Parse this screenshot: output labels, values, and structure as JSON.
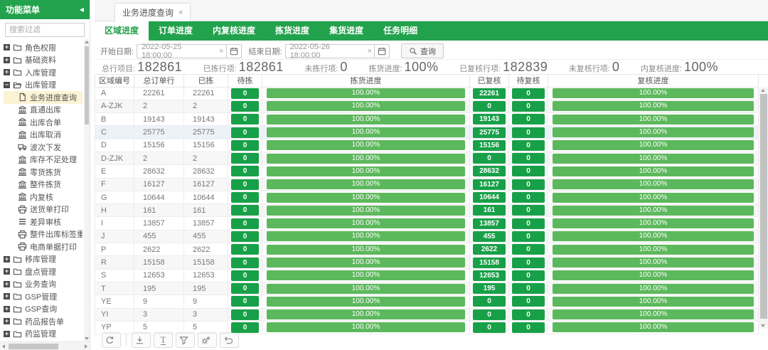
{
  "colors": {
    "accent_green": "#22A24C",
    "badge_green": "#18A048",
    "bar_green": "#5CB85C",
    "selected_yellow": "#FBF3D3",
    "highlight_row": "#EDF2F8"
  },
  "sidebar": {
    "title": "功能菜单",
    "collapse_glyph": "◀",
    "search_placeholder": "搜索过滤",
    "items": [
      {
        "label": "角色权限",
        "icon": "folder-icon",
        "expand": "+"
      },
      {
        "label": "基础资料",
        "icon": "folder-icon",
        "expand": "+"
      },
      {
        "label": "入库管理",
        "icon": "folder-icon",
        "expand": "+"
      },
      {
        "label": "出库管理",
        "icon": "folder-open-icon",
        "expand": "−"
      },
      {
        "label": "业务进度查询",
        "icon": "file-icon",
        "child": true,
        "selected": true
      },
      {
        "label": "直通出库",
        "icon": "bank-icon",
        "child": true
      },
      {
        "label": "出库合单",
        "icon": "bank-icon",
        "child": true
      },
      {
        "label": "出库取消",
        "icon": "bank-icon",
        "child": true
      },
      {
        "label": "波次下发",
        "icon": "truck-icon",
        "child": true
      },
      {
        "label": "库存不足处理",
        "icon": "bank-icon",
        "child": true
      },
      {
        "label": "零货拣货",
        "icon": "bank-icon",
        "child": true
      },
      {
        "label": "整件拣货",
        "icon": "bank-icon",
        "child": true
      },
      {
        "label": "内复核",
        "icon": "bank-icon",
        "child": true
      },
      {
        "label": "送货单打印",
        "icon": "printer-icon",
        "child": true
      },
      {
        "label": "差异审核",
        "icon": "list-icon",
        "child": true
      },
      {
        "label": "整件出库标签重打",
        "icon": "printer-icon",
        "child": true
      },
      {
        "label": "电商单据打印",
        "icon": "printer-icon",
        "child": true
      },
      {
        "label": "移库管理",
        "icon": "folder-icon",
        "expand": "+"
      },
      {
        "label": "盘点管理",
        "icon": "folder-icon",
        "expand": "+"
      },
      {
        "label": "业务查询",
        "icon": "folder-icon",
        "expand": "+"
      },
      {
        "label": "GSP管理",
        "icon": "folder-icon",
        "expand": "+"
      },
      {
        "label": "GSP查询",
        "icon": "folder-icon",
        "expand": "+"
      },
      {
        "label": "药品报告单",
        "icon": "folder-icon",
        "expand": "+"
      },
      {
        "label": "药监管理",
        "icon": "folder-icon",
        "expand": "+"
      }
    ]
  },
  "window_tab": {
    "label": "业务进度查询",
    "close": "×"
  },
  "nav_tabs": [
    {
      "label": "区域进度",
      "active": true
    },
    {
      "label": "订单进度",
      "active": false
    },
    {
      "label": "内复核进度",
      "active": false
    },
    {
      "label": "拣货进度",
      "active": false
    },
    {
      "label": "集货进度",
      "active": false
    },
    {
      "label": "任务明细",
      "active": false
    }
  ],
  "filters": {
    "start_label": "开始日期:",
    "start_value": "2022-05-25 18:00:00",
    "end_label": "结束日期:",
    "end_value": "2022-05-26 18:00:00",
    "clear_glyph": "×",
    "search_button": "查询"
  },
  "summary": [
    {
      "label": "总行项目:",
      "value": "182861"
    },
    {
      "label": "已拣行项:",
      "value": "182861"
    },
    {
      "label": "未拣行项:",
      "value": "0"
    },
    {
      "label": "拣货进度:",
      "value": "100%"
    },
    {
      "label": "已复核行项:",
      "value": "182839"
    },
    {
      "label": "未复核行项:",
      "value": "0"
    },
    {
      "label": "内复核进度:",
      "value": "100%"
    }
  ],
  "table": {
    "columns": [
      "区域编号",
      "总订单行",
      "已拣",
      "待拣",
      "拣货进度",
      "已复核",
      "待复核",
      "复核进度"
    ],
    "rows": [
      {
        "region": "A",
        "total": "22261",
        "picked": "22261",
        "to_pick": "0",
        "pick_progress": "100.00%",
        "reviewed": "22261",
        "to_review": "0",
        "review_progress": "100.00%"
      },
      {
        "region": "A-ZJK",
        "total": "2",
        "picked": "2",
        "to_pick": "0",
        "pick_progress": "100.00%",
        "reviewed": "0",
        "to_review": "0",
        "review_progress": "100.00%"
      },
      {
        "region": "B",
        "total": "19143",
        "picked": "19143",
        "to_pick": "0",
        "pick_progress": "100.00%",
        "reviewed": "19143",
        "to_review": "0",
        "review_progress": "100.00%"
      },
      {
        "region": "C",
        "total": "25775",
        "picked": "25775",
        "to_pick": "0",
        "pick_progress": "100.00%",
        "reviewed": "25775",
        "to_review": "0",
        "review_progress": "100.00%",
        "highlight": true
      },
      {
        "region": "D",
        "total": "15156",
        "picked": "15156",
        "to_pick": "0",
        "pick_progress": "100.00%",
        "reviewed": "15156",
        "to_review": "0",
        "review_progress": "100.00%"
      },
      {
        "region": "D-ZJK",
        "total": "2",
        "picked": "2",
        "to_pick": "0",
        "pick_progress": "100.00%",
        "reviewed": "0",
        "to_review": "0",
        "review_progress": "100.00%"
      },
      {
        "region": "E",
        "total": "28632",
        "picked": "28632",
        "to_pick": "0",
        "pick_progress": "100.00%",
        "reviewed": "28632",
        "to_review": "0",
        "review_progress": "100.00%"
      },
      {
        "region": "F",
        "total": "16127",
        "picked": "16127",
        "to_pick": "0",
        "pick_progress": "100.00%",
        "reviewed": "16127",
        "to_review": "0",
        "review_progress": "100.00%"
      },
      {
        "region": "G",
        "total": "10644",
        "picked": "10644",
        "to_pick": "0",
        "pick_progress": "100.00%",
        "reviewed": "10644",
        "to_review": "0",
        "review_progress": "100.00%"
      },
      {
        "region": "H",
        "total": "161",
        "picked": "161",
        "to_pick": "0",
        "pick_progress": "100.00%",
        "reviewed": "161",
        "to_review": "0",
        "review_progress": "100.00%"
      },
      {
        "region": "I",
        "total": "13857",
        "picked": "13857",
        "to_pick": "0",
        "pick_progress": "100.00%",
        "reviewed": "13857",
        "to_review": "0",
        "review_progress": "100.00%"
      },
      {
        "region": "J",
        "total": "455",
        "picked": "455",
        "to_pick": "0",
        "pick_progress": "100.00%",
        "reviewed": "455",
        "to_review": "0",
        "review_progress": "100.00%"
      },
      {
        "region": "P",
        "total": "2622",
        "picked": "2622",
        "to_pick": "0",
        "pick_progress": "100.00%",
        "reviewed": "2622",
        "to_review": "0",
        "review_progress": "100.00%"
      },
      {
        "region": "R",
        "total": "15158",
        "picked": "15158",
        "to_pick": "0",
        "pick_progress": "100.00%",
        "reviewed": "15158",
        "to_review": "0",
        "review_progress": "100.00%"
      },
      {
        "region": "S",
        "total": "12653",
        "picked": "12653",
        "to_pick": "0",
        "pick_progress": "100.00%",
        "reviewed": "12653",
        "to_review": "0",
        "review_progress": "100.00%"
      },
      {
        "region": "T",
        "total": "195",
        "picked": "195",
        "to_pick": "0",
        "pick_progress": "100.00%",
        "reviewed": "195",
        "to_review": "0",
        "review_progress": "100.00%"
      },
      {
        "region": "YE",
        "total": "9",
        "picked": "9",
        "to_pick": "0",
        "pick_progress": "100.00%",
        "reviewed": "0",
        "to_review": "0",
        "review_progress": "100.00%"
      },
      {
        "region": "YI",
        "total": "3",
        "picked": "3",
        "to_pick": "0",
        "pick_progress": "100.00%",
        "reviewed": "0",
        "to_review": "0",
        "review_progress": "100.00%"
      },
      {
        "region": "YP",
        "total": "5",
        "picked": "5",
        "to_pick": "0",
        "pick_progress": "100.00%",
        "reviewed": "0",
        "to_review": "0",
        "review_progress": "100.00%"
      }
    ]
  },
  "toolbar": {
    "text_glyph": "T",
    "buttons": [
      "refresh-icon",
      "divider",
      "export-icon",
      "text-icon",
      "filter-icon",
      "gears-icon",
      "undo-icon"
    ]
  }
}
